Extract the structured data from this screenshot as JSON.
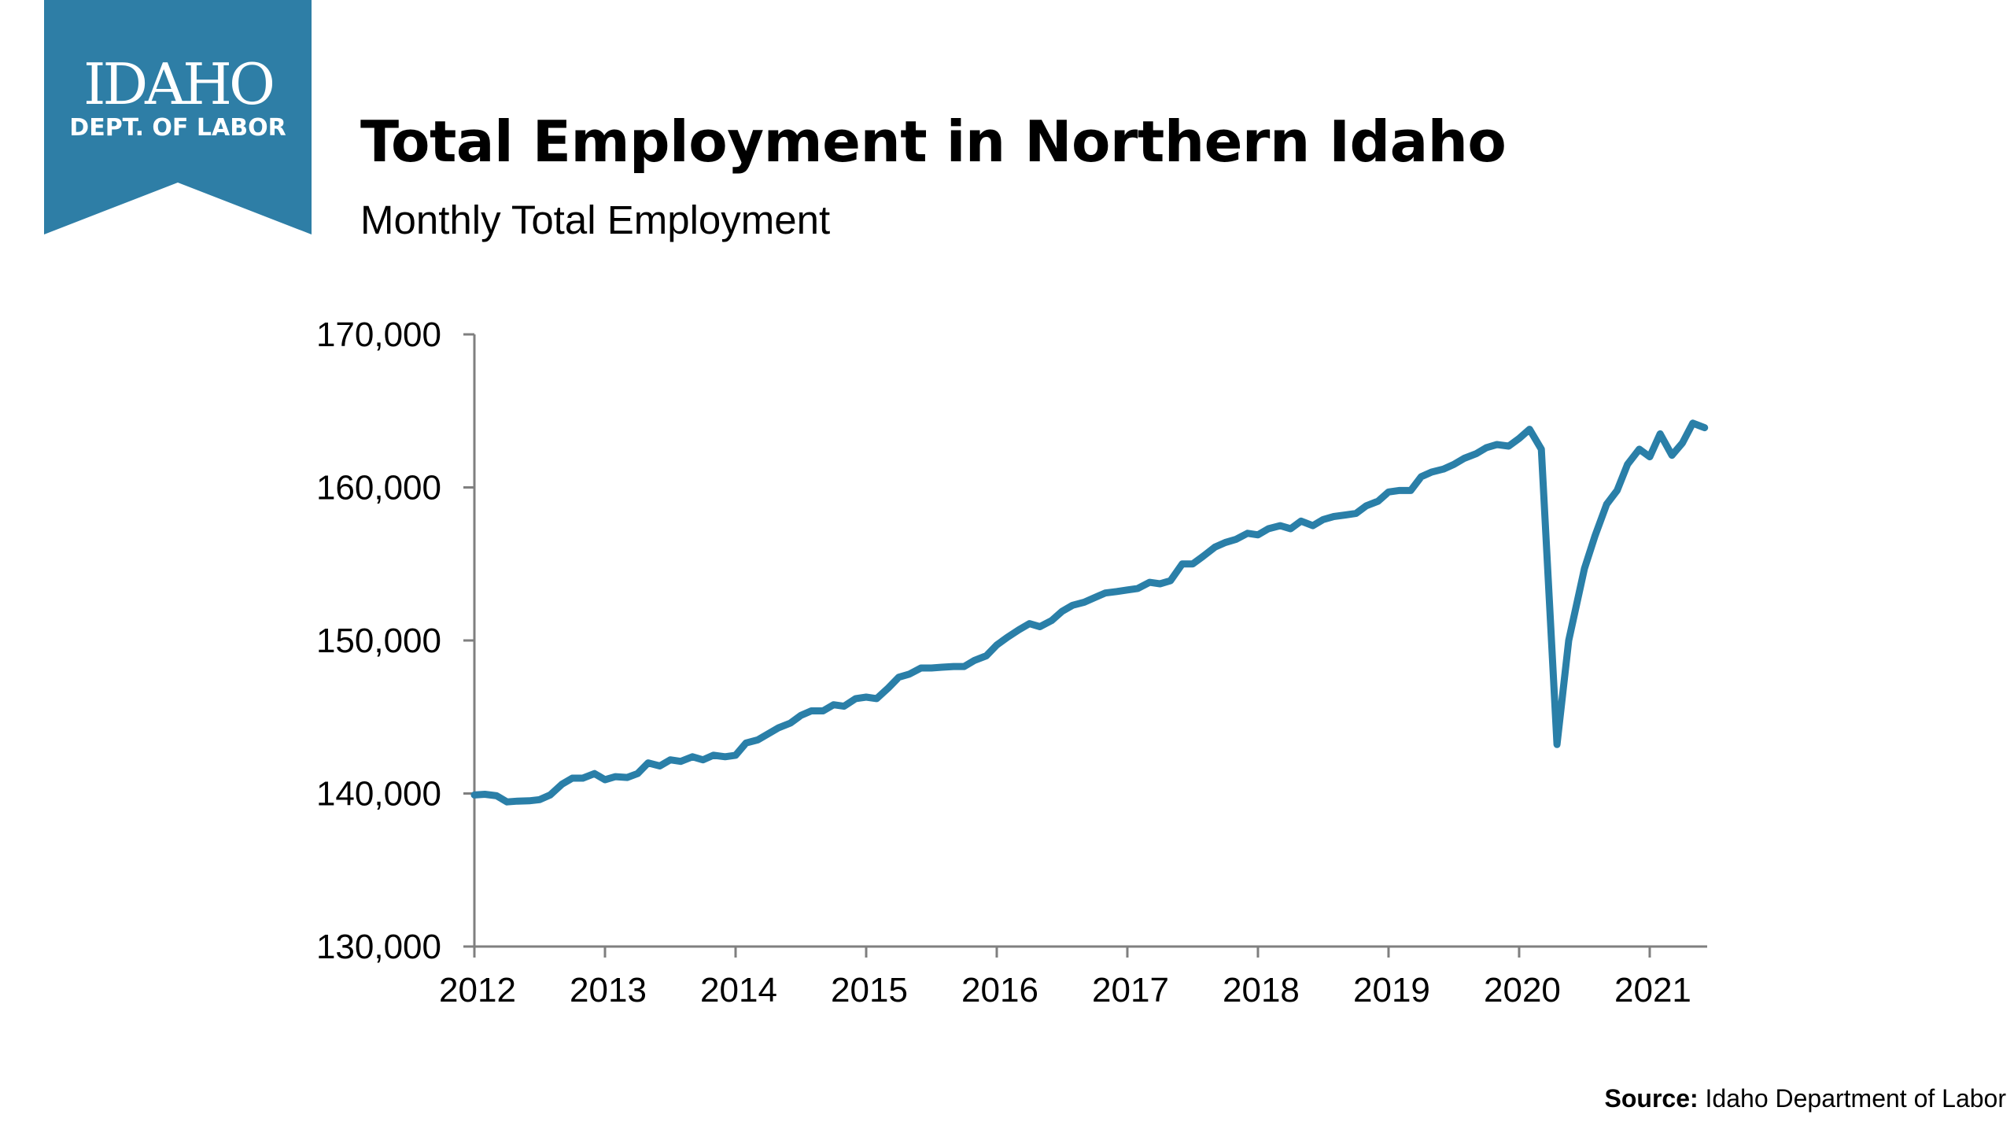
{
  "brand": {
    "line1": "IDAHO",
    "line2": "DEPT. OF LABOR",
    "color": "#2E7EA6"
  },
  "header": {
    "title": "Total Employment in Northern Idaho",
    "subtitle": "Monthly Total Employment"
  },
  "source": {
    "label": "Source:",
    "text": " Idaho Department of Labor"
  },
  "chart_data": {
    "type": "line",
    "title": "Total Employment in Northern Idaho",
    "subtitle": "Monthly Total Employment",
    "xlabel": "",
    "ylabel": "",
    "xlim": [
      2012,
      2021.45
    ],
    "ylim": [
      130000,
      170000
    ],
    "x_ticks": [
      "2012",
      "2013",
      "2014",
      "2015",
      "2016",
      "2017",
      "2018",
      "2019",
      "2020",
      "2021"
    ],
    "y_ticks": [
      "130,000",
      "140,000",
      "150,000",
      "160,000",
      "170,000"
    ],
    "grid": false,
    "legend": "none",
    "line_color": "#2A7FA8",
    "series": [
      {
        "values": [
          [
            2012.0,
            139900
          ],
          [
            2012.08,
            139950
          ],
          [
            2012.17,
            139850
          ],
          [
            2012.25,
            139450
          ],
          [
            2012.33,
            139500
          ],
          [
            2012.42,
            139520
          ],
          [
            2012.5,
            139600
          ],
          [
            2012.58,
            139900
          ],
          [
            2012.67,
            140600
          ],
          [
            2012.75,
            141000
          ],
          [
            2012.83,
            141000
          ],
          [
            2012.92,
            141300
          ],
          [
            2013.0,
            140900
          ],
          [
            2013.08,
            141100
          ],
          [
            2013.17,
            141050
          ],
          [
            2013.25,
            141300
          ],
          [
            2013.33,
            142000
          ],
          [
            2013.42,
            141800
          ],
          [
            2013.5,
            142200
          ],
          [
            2013.58,
            142100
          ],
          [
            2013.67,
            142400
          ],
          [
            2013.75,
            142200
          ],
          [
            2013.83,
            142500
          ],
          [
            2013.92,
            142400
          ],
          [
            2014.0,
            142500
          ],
          [
            2014.08,
            143300
          ],
          [
            2014.17,
            143500
          ],
          [
            2014.25,
            143900
          ],
          [
            2014.33,
            144300
          ],
          [
            2014.42,
            144600
          ],
          [
            2014.5,
            145100
          ],
          [
            2014.58,
            145400
          ],
          [
            2014.67,
            145400
          ],
          [
            2014.75,
            145800
          ],
          [
            2014.83,
            145700
          ],
          [
            2014.92,
            146200
          ],
          [
            2015.0,
            146300
          ],
          [
            2015.08,
            146200
          ],
          [
            2015.17,
            146900
          ],
          [
            2015.25,
            147600
          ],
          [
            2015.33,
            147800
          ],
          [
            2015.42,
            148200
          ],
          [
            2015.5,
            148200
          ],
          [
            2015.58,
            148250
          ],
          [
            2015.67,
            148300
          ],
          [
            2015.75,
            148300
          ],
          [
            2015.83,
            148700
          ],
          [
            2015.92,
            149000
          ],
          [
            2016.0,
            149700
          ],
          [
            2016.08,
            150200
          ],
          [
            2016.17,
            150700
          ],
          [
            2016.25,
            151100
          ],
          [
            2016.33,
            150900
          ],
          [
            2016.42,
            151300
          ],
          [
            2016.5,
            151900
          ],
          [
            2016.58,
            152300
          ],
          [
            2016.67,
            152500
          ],
          [
            2016.75,
            152800
          ],
          [
            2016.83,
            153100
          ],
          [
            2016.92,
            153200
          ],
          [
            2017.0,
            153300
          ],
          [
            2017.08,
            153400
          ],
          [
            2017.17,
            153800
          ],
          [
            2017.25,
            153700
          ],
          [
            2017.33,
            153900
          ],
          [
            2017.42,
            155000
          ],
          [
            2017.5,
            155000
          ],
          [
            2017.58,
            155500
          ],
          [
            2017.67,
            156100
          ],
          [
            2017.75,
            156400
          ],
          [
            2017.83,
            156600
          ],
          [
            2017.92,
            157000
          ],
          [
            2018.0,
            156900
          ],
          [
            2018.08,
            157300
          ],
          [
            2018.17,
            157500
          ],
          [
            2018.25,
            157300
          ],
          [
            2018.33,
            157800
          ],
          [
            2018.42,
            157500
          ],
          [
            2018.5,
            157900
          ],
          [
            2018.58,
            158100
          ],
          [
            2018.67,
            158200
          ],
          [
            2018.75,
            158300
          ],
          [
            2018.83,
            158800
          ],
          [
            2018.92,
            159100
          ],
          [
            2019.0,
            159700
          ],
          [
            2019.08,
            159800
          ],
          [
            2019.17,
            159800
          ],
          [
            2019.25,
            160700
          ],
          [
            2019.33,
            161000
          ],
          [
            2019.42,
            161200
          ],
          [
            2019.5,
            161500
          ],
          [
            2019.58,
            161900
          ],
          [
            2019.67,
            162200
          ],
          [
            2019.75,
            162600
          ],
          [
            2019.83,
            162800
          ],
          [
            2019.92,
            162700
          ],
          [
            2020.0,
            163200
          ],
          [
            2020.08,
            163800
          ],
          [
            2020.17,
            162500
          ],
          [
            2020.29,
            143200
          ],
          [
            2020.38,
            150000
          ],
          [
            2020.5,
            154700
          ],
          [
            2020.58,
            156800
          ],
          [
            2020.67,
            158900
          ],
          [
            2020.75,
            159800
          ],
          [
            2020.83,
            161500
          ],
          [
            2020.92,
            162500
          ],
          [
            2021.0,
            162000
          ],
          [
            2021.08,
            163500
          ],
          [
            2021.17,
            162100
          ],
          [
            2021.25,
            162900
          ],
          [
            2021.33,
            164200
          ],
          [
            2021.42,
            163900
          ]
        ]
      }
    ]
  }
}
